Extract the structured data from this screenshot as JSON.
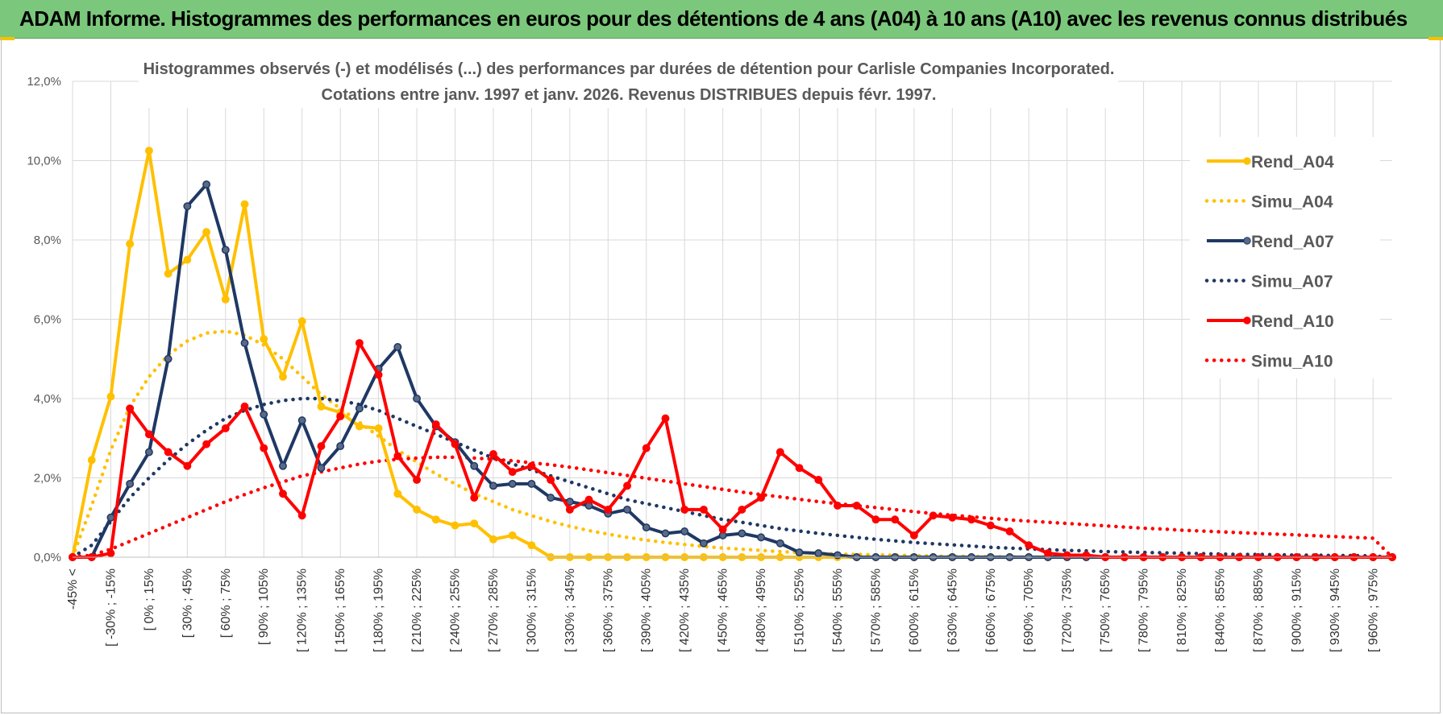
{
  "header": {
    "banner_title": "ADAM Informe. Histogrammes des performances en euros pour des détentions de 4 ans (A04) à 10 ans (A10) avec les revenus connus distribués"
  },
  "colors": {
    "banner_bg": "#7bc77b",
    "a04": "#ffc000",
    "a07": "#1f3864",
    "a10": "#ff0000",
    "grid": "#d9d9d9"
  },
  "chart_data": {
    "type": "line",
    "title_line1": "Histogrammes observés (-) et modélisés (...) des performances par durées de détention pour Carlisle Companies Incorporated.",
    "title_line2": "Cotations entre janv. 1997 et janv. 2026. Revenus DISTRIBUES depuis févr. 1997.",
    "ylim": [
      0,
      12
    ],
    "yticks": [
      "0,0%",
      "2,0%",
      "4,0%",
      "6,0%",
      "8,0%",
      "10,0%",
      "12,0%"
    ],
    "xticks": [
      "-45% <",
      "[ -30% ; -15%",
      "[ 0% ; 15%",
      "[ 30% ; 45%",
      "[ 60% ; 75%",
      "[ 90% ; 105%",
      "[ 120% ; 135%",
      "[ 150% ; 165%",
      "[ 180% ; 195%",
      "[ 210% ; 225%",
      "[ 240% ; 255%",
      "[ 270% ; 285%",
      "[ 300% ; 315%",
      "[ 330% ; 345%",
      "[ 360% ; 375%",
      "[ 390% ; 405%",
      "[ 420% ; 435%",
      "[ 450% ; 465%",
      "[ 480% ; 495%",
      "[ 510% ; 525%",
      "[ 540% ; 555%",
      "[ 570% ; 585%",
      "[ 600% ; 615%",
      "[ 630% ; 645%",
      "[ 660% ; 675%",
      "[ 690% ; 705%",
      "[ 720% ; 735%",
      "[ 750% ; 765%",
      "[ 780% ; 795%",
      "[ 810% ; 825%",
      "[ 840% ; 855%",
      "[ 870% ; 885%",
      "[ 900% ; 915%",
      "[ 930% ; 945%",
      "[ 960% ; 975%"
    ],
    "series": [
      {
        "name": "Rend_A04",
        "style": "solid",
        "color": "#ffc000",
        "values": [
          0,
          2.45,
          4.05,
          7.9,
          10.25,
          7.15,
          7.5,
          8.2,
          6.5,
          8.9,
          5.5,
          4.55,
          5.95,
          3.8,
          3.65,
          3.3,
          3.25,
          1.6,
          1.2,
          0.95,
          0.8,
          0.85,
          0.45,
          0.55,
          0.3,
          0,
          0,
          0,
          0,
          0,
          0,
          0,
          0,
          0,
          0,
          0,
          0,
          0,
          0,
          0,
          0,
          0,
          0,
          0,
          0,
          0,
          0,
          0,
          0,
          0,
          0,
          0,
          0,
          0,
          0,
          0,
          0,
          0,
          0,
          0,
          0,
          0,
          0,
          0,
          0,
          0,
          0,
          0,
          0,
          0
        ]
      },
      {
        "name": "Simu_A04",
        "style": "dotted",
        "color": "#ffc000",
        "values": [
          0,
          1.3,
          2.7,
          3.8,
          4.55,
          5.1,
          5.45,
          5.65,
          5.7,
          5.6,
          5.35,
          5.0,
          4.55,
          4.1,
          3.75,
          3.4,
          3.05,
          2.7,
          2.4,
          2.1,
          1.85,
          1.6,
          1.4,
          1.2,
          1.05,
          0.9,
          0.78,
          0.67,
          0.58,
          0.5,
          0.43,
          0.37,
          0.32,
          0.27,
          0.23,
          0.2,
          0.17,
          0.14,
          0.12,
          0.1,
          0.08,
          0.07,
          0.06,
          0.05,
          0.04,
          0.03,
          0.02,
          0.02,
          0.01,
          0.01,
          0,
          0,
          0,
          0,
          0,
          0,
          0,
          0,
          0,
          0,
          0,
          0,
          0,
          0,
          0,
          0,
          0,
          0,
          0,
          0
        ]
      },
      {
        "name": "Rend_A07",
        "style": "solid",
        "color": "#1f3864",
        "values": [
          0,
          0,
          1.0,
          1.85,
          2.65,
          5.0,
          8.85,
          9.4,
          7.75,
          5.4,
          3.6,
          2.3,
          3.45,
          2.25,
          2.8,
          3.75,
          4.75,
          5.3,
          4.0,
          3.3,
          2.9,
          2.3,
          1.8,
          1.85,
          1.85,
          1.5,
          1.4,
          1.3,
          1.1,
          1.2,
          0.75,
          0.6,
          0.65,
          0.35,
          0.55,
          0.6,
          0.5,
          0.35,
          0.12,
          0.1,
          0.05,
          0,
          0,
          0,
          0,
          0,
          0,
          0,
          0,
          0,
          0,
          0,
          0,
          0,
          0,
          0,
          0,
          0,
          0,
          0,
          0,
          0,
          0,
          0,
          0,
          0,
          0,
          0,
          0,
          0
        ]
      },
      {
        "name": "Simu_A07",
        "style": "dotted",
        "color": "#1f3864",
        "values": [
          0,
          0.3,
          0.9,
          1.5,
          2.0,
          2.45,
          2.85,
          3.2,
          3.5,
          3.7,
          3.85,
          3.95,
          4.0,
          4.0,
          3.95,
          3.85,
          3.7,
          3.5,
          3.3,
          3.1,
          2.9,
          2.7,
          2.5,
          2.35,
          2.2,
          2.05,
          1.9,
          1.75,
          1.6,
          1.45,
          1.35,
          1.25,
          1.15,
          1.05,
          0.95,
          0.88,
          0.8,
          0.72,
          0.66,
          0.6,
          0.55,
          0.5,
          0.45,
          0.41,
          0.37,
          0.34,
          0.31,
          0.28,
          0.25,
          0.23,
          0.21,
          0.19,
          0.17,
          0.16,
          0.14,
          0.13,
          0.12,
          0.11,
          0.1,
          0.09,
          0.08,
          0.07,
          0.07,
          0.06,
          0.05,
          0.05,
          0.04,
          0.04,
          0.03,
          0
        ]
      },
      {
        "name": "Rend_A10",
        "style": "solid",
        "color": "#ff0000",
        "values": [
          0,
          0,
          0.1,
          3.75,
          3.1,
          2.65,
          2.3,
          2.85,
          3.25,
          3.8,
          2.75,
          1.6,
          1.05,
          2.8,
          3.55,
          5.4,
          4.6,
          2.55,
          1.95,
          3.35,
          2.85,
          1.5,
          2.6,
          2.15,
          2.3,
          1.95,
          1.2,
          1.45,
          1.2,
          1.8,
          2.75,
          3.5,
          1.2,
          1.2,
          0.7,
          1.2,
          1.5,
          2.65,
          2.25,
          1.95,
          1.3,
          1.3,
          0.95,
          0.95,
          0.55,
          1.05,
          1.0,
          0.95,
          0.8,
          0.65,
          0.3,
          0.1,
          0.05,
          0.05,
          0,
          0,
          0,
          0,
          0,
          0,
          0,
          0,
          0,
          0,
          0,
          0,
          0,
          0,
          0,
          0
        ]
      },
      {
        "name": "Simu_A10",
        "style": "dotted",
        "color": "#ff0000",
        "values": [
          0,
          0.05,
          0.2,
          0.4,
          0.6,
          0.8,
          1.0,
          1.2,
          1.4,
          1.58,
          1.75,
          1.9,
          2.05,
          2.15,
          2.25,
          2.35,
          2.42,
          2.47,
          2.5,
          2.52,
          2.52,
          2.5,
          2.47,
          2.43,
          2.38,
          2.33,
          2.27,
          2.2,
          2.13,
          2.06,
          1.99,
          1.92,
          1.85,
          1.78,
          1.71,
          1.64,
          1.58,
          1.52,
          1.46,
          1.4,
          1.35,
          1.3,
          1.25,
          1.2,
          1.15,
          1.1,
          1.06,
          1.02,
          0.98,
          0.94,
          0.91,
          0.88,
          0.85,
          0.82,
          0.79,
          0.76,
          0.73,
          0.71,
          0.68,
          0.66,
          0.64,
          0.62,
          0.6,
          0.58,
          0.56,
          0.54,
          0.52,
          0.5,
          0.48,
          0
        ]
      }
    ]
  }
}
